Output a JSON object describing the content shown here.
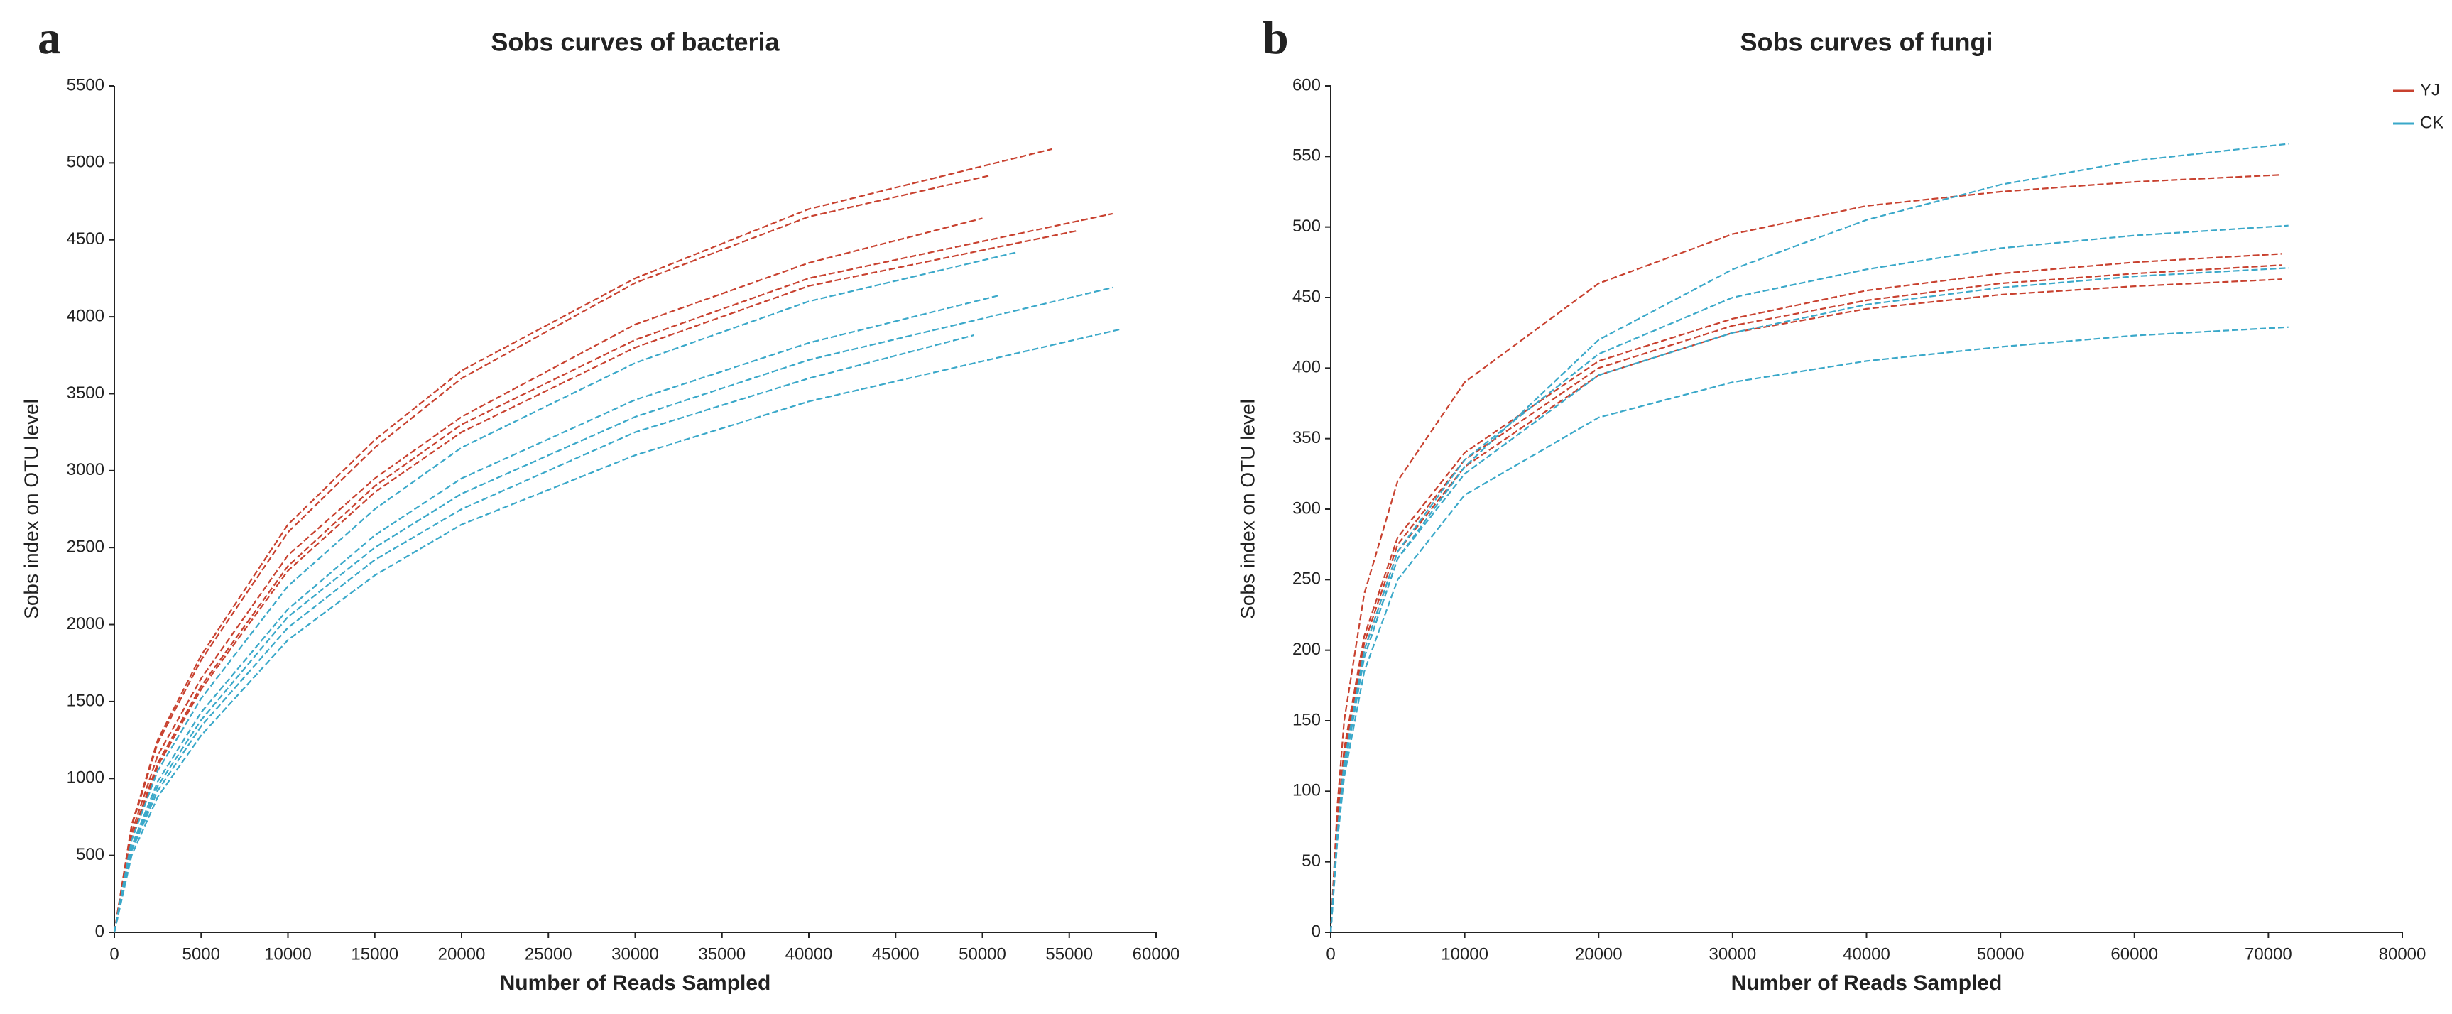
{
  "chart_data": [
    {
      "type": "line",
      "label": "a",
      "title": "Sobs curves of bacteria",
      "xlabel": "Number of Reads Sampled",
      "ylabel": "Sobs index on OTU level",
      "xlim": [
        0,
        60000
      ],
      "ylim": [
        0,
        5500
      ],
      "xticks": [
        0,
        5000,
        10000,
        15000,
        20000,
        25000,
        30000,
        35000,
        40000,
        45000,
        50000,
        55000,
        60000
      ],
      "yticks": [
        0,
        500,
        1000,
        1500,
        2000,
        2500,
        3000,
        3500,
        4000,
        4500,
        5000,
        5500
      ],
      "series": [
        {
          "color": "#c8412f",
          "lines": [
            {
              "x": [
                0,
                1000,
                2500,
                5000,
                10000,
                15000,
                20000,
                30000,
                40000,
                54000
              ],
              "values": [
                0,
                700,
                1250,
                1800,
                2650,
                3200,
                3650,
                4250,
                4700,
                5090
              ]
            },
            {
              "x": [
                0,
                1000,
                2500,
                5000,
                10000,
                15000,
                20000,
                30000,
                40000,
                50500
              ],
              "values": [
                0,
                690,
                1230,
                1770,
                2600,
                3150,
                3600,
                4220,
                4650,
                4920
              ]
            },
            {
              "x": [
                0,
                1000,
                2500,
                5000,
                10000,
                15000,
                20000,
                30000,
                40000,
                50000
              ],
              "values": [
                0,
                650,
                1150,
                1650,
                2450,
                2950,
                3350,
                3950,
                4350,
                4640
              ]
            },
            {
              "x": [
                0,
                1000,
                2500,
                5000,
                10000,
                15000,
                20000,
                30000,
                40000,
                57500
              ],
              "values": [
                0,
                620,
                1100,
                1600,
                2380,
                2900,
                3300,
                3850,
                4250,
                4670
              ]
            },
            {
              "x": [
                0,
                1000,
                2500,
                5000,
                10000,
                15000,
                20000,
                30000,
                40000,
                55500
              ],
              "values": [
                0,
                610,
                1080,
                1580,
                2350,
                2860,
                3250,
                3800,
                4200,
                4560
              ]
            }
          ]
        },
        {
          "color": "#3aa8c9",
          "lines": [
            {
              "x": [
                0,
                1000,
                2500,
                5000,
                10000,
                15000,
                20000,
                30000,
                40000,
                52000
              ],
              "values": [
                0,
                600,
                1050,
                1520,
                2250,
                2750,
                3150,
                3700,
                4100,
                4420
              ]
            },
            {
              "x": [
                0,
                1000,
                2500,
                5000,
                10000,
                15000,
                20000,
                30000,
                40000,
                51000
              ],
              "values": [
                0,
                560,
                980,
                1430,
                2100,
                2580,
                2950,
                3460,
                3830,
                4140
              ]
            },
            {
              "x": [
                0,
                1000,
                2500,
                5000,
                10000,
                15000,
                20000,
                30000,
                40000,
                57500
              ],
              "values": [
                0,
                540,
                950,
                1380,
                2050,
                2500,
                2850,
                3350,
                3720,
                4190
              ]
            },
            {
              "x": [
                0,
                1000,
                2500,
                5000,
                10000,
                15000,
                20000,
                30000,
                40000,
                49500
              ],
              "values": [
                0,
                530,
                920,
                1340,
                1980,
                2420,
                2750,
                3250,
                3600,
                3880
              ]
            },
            {
              "x": [
                0,
                1000,
                2500,
                5000,
                10000,
                15000,
                20000,
                30000,
                40000,
                58000
              ],
              "values": [
                0,
                500,
                880,
                1280,
                1900,
                2320,
                2650,
                3100,
                3450,
                3920
              ]
            }
          ]
        }
      ]
    },
    {
      "type": "line",
      "label": "b",
      "title": "Sobs curves of fungi",
      "xlabel": "Number of Reads Sampled",
      "ylabel": "Sobs index on OTU level",
      "xlim": [
        0,
        80000
      ],
      "ylim": [
        0,
        600
      ],
      "xticks": [
        0,
        10000,
        20000,
        30000,
        40000,
        50000,
        60000,
        70000,
        80000
      ],
      "yticks": [
        0,
        50,
        100,
        150,
        200,
        250,
        300,
        350,
        400,
        450,
        500,
        550,
        600
      ],
      "legend": "top-right",
      "series": [
        {
          "name": "YJ",
          "color": "#c8412f",
          "lines": [
            {
              "x": [
                0,
                500,
                1000,
                2500,
                5000,
                10000,
                20000,
                30000,
                40000,
                50000,
                60000,
                71000
              ],
              "values": [
                0,
                90,
                150,
                240,
                320,
                390,
                460,
                495,
                515,
                525,
                532,
                537
              ]
            },
            {
              "x": [
                0,
                500,
                1000,
                2500,
                5000,
                10000,
                20000,
                30000,
                40000,
                50000,
                60000,
                71000
              ],
              "values": [
                0,
                80,
                130,
                210,
                280,
                340,
                405,
                435,
                455,
                467,
                475,
                481
              ]
            },
            {
              "x": [
                0,
                500,
                1000,
                2500,
                5000,
                10000,
                20000,
                30000,
                40000,
                50000,
                60000,
                71000
              ],
              "values": [
                0,
                75,
                125,
                205,
                275,
                335,
                400,
                430,
                448,
                460,
                467,
                473
              ]
            },
            {
              "x": [
                0,
                500,
                1000,
                2500,
                5000,
                10000,
                20000,
                30000,
                40000,
                50000,
                60000,
                71000
              ],
              "values": [
                0,
                75,
                125,
                200,
                270,
                330,
                395,
                425,
                442,
                452,
                458,
                463
              ]
            }
          ]
        },
        {
          "name": "CK",
          "color": "#3aa8c9",
          "lines": [
            {
              "x": [
                0,
                500,
                1000,
                2500,
                5000,
                10000,
                20000,
                30000,
                40000,
                50000,
                60000,
                71500
              ],
              "values": [
                0,
                70,
                115,
                195,
                265,
                330,
                420,
                470,
                505,
                530,
                547,
                559
              ]
            },
            {
              "x": [
                0,
                500,
                1000,
                2500,
                5000,
                10000,
                20000,
                30000,
                40000,
                50000,
                60000,
                71500
              ],
              "values": [
                0,
                70,
                120,
                200,
                270,
                335,
                410,
                450,
                470,
                485,
                494,
                501
              ]
            },
            {
              "x": [
                0,
                500,
                1000,
                2500,
                5000,
                10000,
                20000,
                30000,
                40000,
                50000,
                60000,
                71500
              ],
              "values": [
                0,
                70,
                120,
                195,
                265,
                325,
                395,
                425,
                445,
                457,
                465,
                471
              ]
            },
            {
              "x": [
                0,
                500,
                1000,
                2500,
                5000,
                10000,
                20000,
                30000,
                40000,
                50000,
                60000,
                71500
              ],
              "values": [
                0,
                65,
                110,
                185,
                250,
                310,
                365,
                390,
                405,
                415,
                423,
                429
              ]
            }
          ]
        }
      ]
    }
  ]
}
